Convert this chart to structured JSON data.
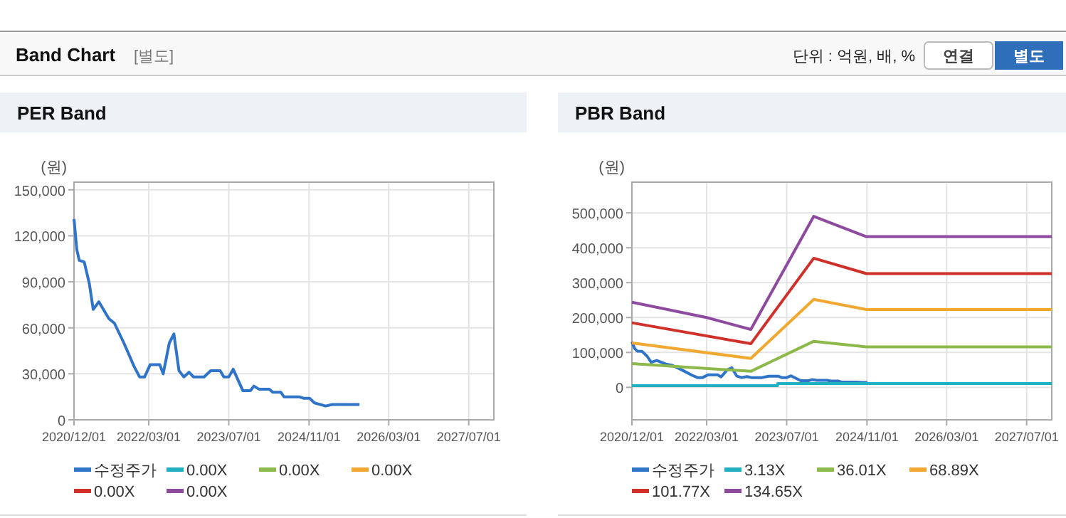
{
  "chart_data": [
    {
      "type": "line",
      "title": "PER Band",
      "ylabel": "(원)",
      "annotations": [
        "Band Chart",
        "[별도]",
        "단위 : 억원, 배, %",
        "연결",
        "별도"
      ],
      "xlim": [
        "2020-12-01",
        "2027-12-01"
      ],
      "xticks": [
        {
          "value": "2020-12-01",
          "label": "2020/12/01"
        },
        {
          "value": "2022-03-01",
          "label": "2022/03/01"
        },
        {
          "value": "2023-07-01",
          "label": "2023/07/01"
        },
        {
          "value": "2024-11-01",
          "label": "2024/11/01"
        },
        {
          "value": "2026-03-01",
          "label": "2026/03/01"
        },
        {
          "value": "2027-07-01",
          "label": "2027/07/01"
        }
      ],
      "ylim": [
        0,
        155000
      ],
      "yticks": [
        {
          "value": 0,
          "label": "0"
        },
        {
          "value": 30000,
          "label": "30,000"
        },
        {
          "value": 60000,
          "label": "60,000"
        },
        {
          "value": 90000,
          "label": "90,000"
        },
        {
          "value": 120000,
          "label": "120,000"
        },
        {
          "value": 150000,
          "label": "150,000"
        }
      ],
      "grid": true,
      "legend": "bottom",
      "marker": "none",
      "line_style": "solid",
      "series": [
        {
          "name": "수정주가",
          "color": "#2f74c8",
          "x": [
            "2020-12-01",
            "2020-12-18",
            "2021-01-02",
            "2021-02-01",
            "2021-03-04",
            "2021-03-28",
            "2021-05-01",
            "2021-07-01",
            "2021-08-04",
            "2021-10-01",
            "2021-12-01",
            "2022-01-04",
            "2022-02-04",
            "2022-03-10",
            "2022-05-07",
            "2022-05-28",
            "2022-07-04",
            "2022-08-01",
            "2022-09-01",
            "2022-10-01",
            "2022-11-01",
            "2022-11-28",
            "2023-02-01",
            "2023-03-13",
            "2023-05-10",
            "2023-06-01",
            "2023-07-01",
            "2023-07-28",
            "2023-09-25",
            "2023-11-10",
            "2023-12-01",
            "2024-01-01",
            "2024-02-04",
            "2024-03-04",
            "2024-03-25",
            "2024-05-13",
            "2024-06-01",
            "2024-09-01",
            "2024-10-01",
            "2024-11-04",
            "2024-12-04",
            "2025-02-10",
            "2025-03-22",
            "2025-09-04"
          ],
          "values": [
            131000,
            111000,
            104000,
            103000,
            89000,
            72000,
            77000,
            66000,
            63000,
            50000,
            35000,
            28000,
            28000,
            36000,
            36000,
            30000,
            50000,
            56000,
            32000,
            28000,
            31000,
            28000,
            28000,
            32000,
            32000,
            28000,
            28000,
            33000,
            19000,
            19000,
            22000,
            20000,
            20000,
            20000,
            18000,
            18000,
            15000,
            15000,
            14000,
            14000,
            11000,
            9000,
            10000,
            10000
          ]
        },
        {
          "name": "0.00X",
          "color": "#21b0c0"
        },
        {
          "name": "0.00X",
          "color": "#8db84a"
        },
        {
          "name": "0.00X",
          "color": "#f0a830"
        },
        {
          "name": "0.00X",
          "color": "#d0302a"
        },
        {
          "name": "0.00X",
          "color": "#8e4a9f"
        }
      ]
    },
    {
      "type": "line",
      "title": "PBR Band",
      "ylabel": "(원)",
      "xlim": [
        "2020-12-01",
        "2027-12-01"
      ],
      "xticks": [
        {
          "value": "2020-12-01",
          "label": "2020/12/01"
        },
        {
          "value": "2022-03-01",
          "label": "2022/03/01"
        },
        {
          "value": "2023-07-01",
          "label": "2023/07/01"
        },
        {
          "value": "2024-11-01",
          "label": "2024/11/01"
        },
        {
          "value": "2026-03-01",
          "label": "2026/03/01"
        },
        {
          "value": "2027-07-01",
          "label": "2027/07/01"
        }
      ],
      "ylim": [
        -93000,
        588000
      ],
      "yticks": [
        {
          "value": 0,
          "label": "0"
        },
        {
          "value": 100000,
          "label": "100,000"
        },
        {
          "value": 200000,
          "label": "200,000"
        },
        {
          "value": 300000,
          "label": "300,000"
        },
        {
          "value": 400000,
          "label": "400,000"
        },
        {
          "value": 500000,
          "label": "500,000"
        }
      ],
      "grid": true,
      "legend": "bottom",
      "marker": "none",
      "line_style": "solid",
      "series": [
        {
          "name": "수정주가",
          "color": "#2f74c8",
          "x": [
            "2020-12-01",
            "2020-12-18",
            "2021-01-02",
            "2021-02-01",
            "2021-03-04",
            "2021-03-28",
            "2021-05-01",
            "2021-07-01",
            "2021-08-04",
            "2021-10-01",
            "2021-12-01",
            "2022-01-04",
            "2022-02-04",
            "2022-03-10",
            "2022-05-07",
            "2022-05-28",
            "2022-07-04",
            "2022-08-01",
            "2022-09-01",
            "2022-10-01",
            "2022-11-01",
            "2022-11-28",
            "2023-02-01",
            "2023-03-13",
            "2023-05-10",
            "2023-06-01",
            "2023-07-01",
            "2023-07-28",
            "2023-09-25",
            "2023-11-10",
            "2023-12-01",
            "2024-01-01",
            "2024-02-04",
            "2024-03-04",
            "2024-03-25",
            "2024-05-13",
            "2024-06-01",
            "2024-09-01",
            "2024-10-01",
            "2024-11-04"
          ],
          "values": [
            131000,
            111000,
            104000,
            103000,
            89000,
            72000,
            77000,
            66000,
            63000,
            50000,
            35000,
            28000,
            28000,
            36000,
            36000,
            30000,
            50000,
            56000,
            32000,
            28000,
            31000,
            28000,
            28000,
            32000,
            32000,
            28000,
            28000,
            33000,
            19000,
            19000,
            22000,
            20000,
            20000,
            20000,
            18000,
            18000,
            15000,
            15000,
            14000,
            14000
          ]
        },
        {
          "name": "3.13X",
          "color": "#21b0c0",
          "x": [
            "2020-12-01",
            "2023-05-07",
            "2023-05-08",
            "2027-12-01"
          ],
          "values": [
            5000,
            5000,
            11000,
            11000
          ]
        },
        {
          "name": "36.01X",
          "color": "#8db84a",
          "x": [
            "2020-12-01",
            "2022-11-25",
            "2023-12-13",
            "2024-10-28",
            "2027-12-01"
          ],
          "values": [
            68000,
            46000,
            132000,
            116000,
            116000
          ]
        },
        {
          "name": "68.89X",
          "color": "#f0a830",
          "x": [
            "2020-12-01",
            "2022-11-25",
            "2023-12-13",
            "2024-10-28",
            "2027-12-01"
          ],
          "values": [
            127000,
            83000,
            252000,
            223000,
            223000
          ]
        },
        {
          "name": "101.77X",
          "color": "#d0302a",
          "x": [
            "2020-12-01",
            "2022-11-25",
            "2023-12-13",
            "2024-10-28",
            "2027-12-01"
          ],
          "values": [
            185000,
            125000,
            370000,
            326000,
            326000
          ]
        },
        {
          "name": "134.65X",
          "color": "#8e4a9f",
          "x": [
            "2020-12-01",
            "2022-03-01",
            "2022-11-25",
            "2023-12-13",
            "2024-10-28",
            "2027-12-01"
          ],
          "values": [
            244000,
            200000,
            166000,
            490000,
            432000,
            432000
          ]
        }
      ]
    }
  ]
}
